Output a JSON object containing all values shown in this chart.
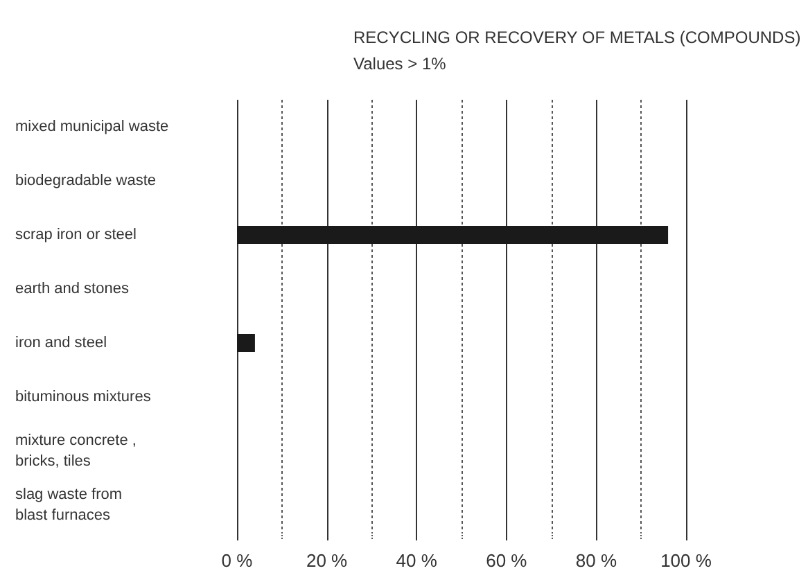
{
  "chart_data": {
    "type": "bar",
    "orientation": "horizontal",
    "title": "RECYCLING OR RECOVERY OF METALS (COMPOUNDS)",
    "subtitle": "Values > 1%",
    "categories": [
      "mixed municipal waste",
      "biodegradable waste",
      "scrap iron or steel",
      "earth and stones",
      "iron and steel",
      "bituminous mixtures",
      "mixture concrete ,\nbricks, tiles",
      "slag waste from\nblast furnaces"
    ],
    "values": [
      null,
      null,
      96,
      null,
      4,
      null,
      null,
      null
    ],
    "color": "#1a1a1a",
    "xlim": [
      0,
      100
    ],
    "xticks": [
      {
        "value": 0,
        "label": "0 %"
      },
      {
        "value": 10,
        "label": null
      },
      {
        "value": 20,
        "label": "20 %"
      },
      {
        "value": 30,
        "label": null
      },
      {
        "value": 40,
        "label": "40 %"
      },
      {
        "value": 50,
        "label": null
      },
      {
        "value": 60,
        "label": "60 %"
      },
      {
        "value": 70,
        "label": null
      },
      {
        "value": 80,
        "label": "80 %"
      },
      {
        "value": 90,
        "label": null
      },
      {
        "value": 100,
        "label": "100 %"
      }
    ],
    "grid": "x"
  }
}
